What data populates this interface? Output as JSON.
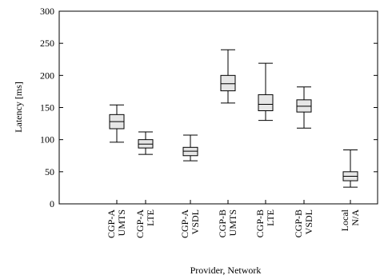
{
  "chart_data": {
    "type": "boxplot",
    "xlabel": "Provider, Network",
    "ylabel": "Latency [ms]",
    "ylim": [
      0,
      300
    ],
    "yticks": [
      0,
      50,
      100,
      150,
      200,
      250,
      300
    ],
    "categories": [
      {
        "line1": "CGP-A",
        "line2": "UMTS"
      },
      {
        "line1": "CGP-A",
        "line2": "LTE"
      },
      {
        "line1": "CGP-A",
        "line2": "VSDL"
      },
      {
        "line1": "CGP-B",
        "line2": "UMTS"
      },
      {
        "line1": "CGP-B",
        "line2": "LTE"
      },
      {
        "line1": "CGP-B",
        "line2": "VSDL"
      },
      {
        "line1": "Local",
        "line2": "N/A"
      }
    ],
    "boxes": [
      {
        "min": 96,
        "q1": 117,
        "median": 128,
        "q3": 139,
        "max": 154
      },
      {
        "min": 77,
        "q1": 87,
        "median": 93,
        "q3": 100,
        "max": 112
      },
      {
        "min": 67,
        "q1": 75,
        "median": 82,
        "q3": 88,
        "max": 107
      },
      {
        "min": 157,
        "q1": 176,
        "median": 187,
        "q3": 200,
        "max": 240
      },
      {
        "min": 130,
        "q1": 145,
        "median": 155,
        "q3": 170,
        "max": 219
      },
      {
        "min": 118,
        "q1": 143,
        "median": 152,
        "q3": 162,
        "max": 182
      },
      {
        "min": 26,
        "q1": 36,
        "median": 43,
        "q3": 50,
        "max": 84
      }
    ],
    "box_fill": "#e6e6e6",
    "grid": false
  }
}
